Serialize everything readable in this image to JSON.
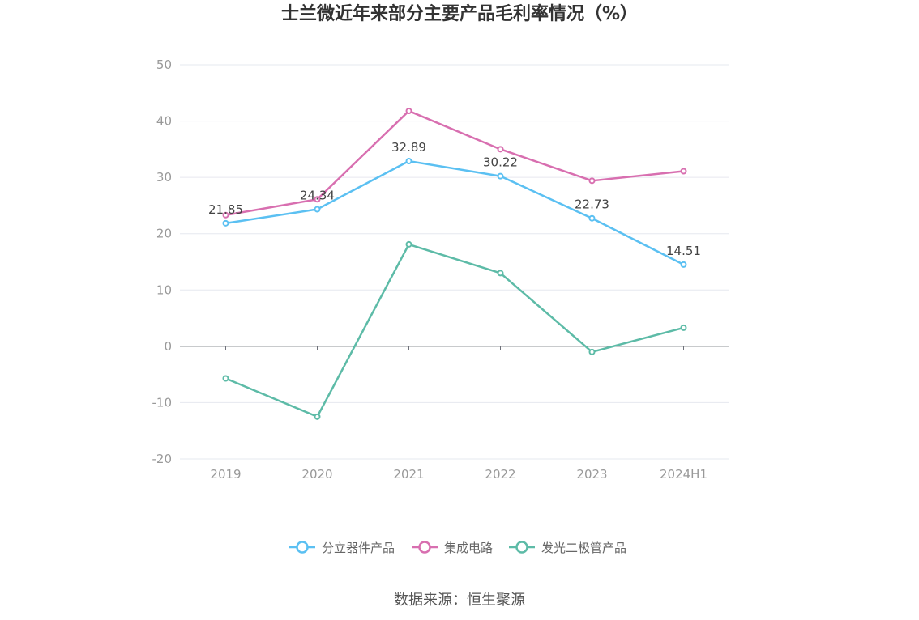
{
  "chart_data": {
    "type": "line",
    "title": "士兰微近年来部分主要产品毛利率情况（%）",
    "categories": [
      "2019",
      "2020",
      "2021",
      "2022",
      "2023",
      "2024H1"
    ],
    "ylim": [
      -20,
      50
    ],
    "yticks": [
      50,
      40,
      30,
      20,
      10,
      0,
      -10,
      -20
    ],
    "grid": true,
    "legend_position": "bottom",
    "series": [
      {
        "name": "分立器件产品",
        "color": "#5bc0f2",
        "values": [
          21.85,
          24.34,
          32.89,
          30.22,
          22.73,
          14.51
        ],
        "show_labels": true
      },
      {
        "name": "集成电路",
        "color": "#d86fb0",
        "values": [
          23.3,
          26.1,
          41.8,
          35.0,
          29.4,
          31.1
        ],
        "show_labels": false
      },
      {
        "name": "发光二极管产品",
        "color": "#5dbba7",
        "values": [
          -5.7,
          -12.5,
          18.1,
          13.0,
          -1.0,
          3.3
        ],
        "show_labels": false
      }
    ],
    "source": "数据来源：恒生聚源"
  }
}
